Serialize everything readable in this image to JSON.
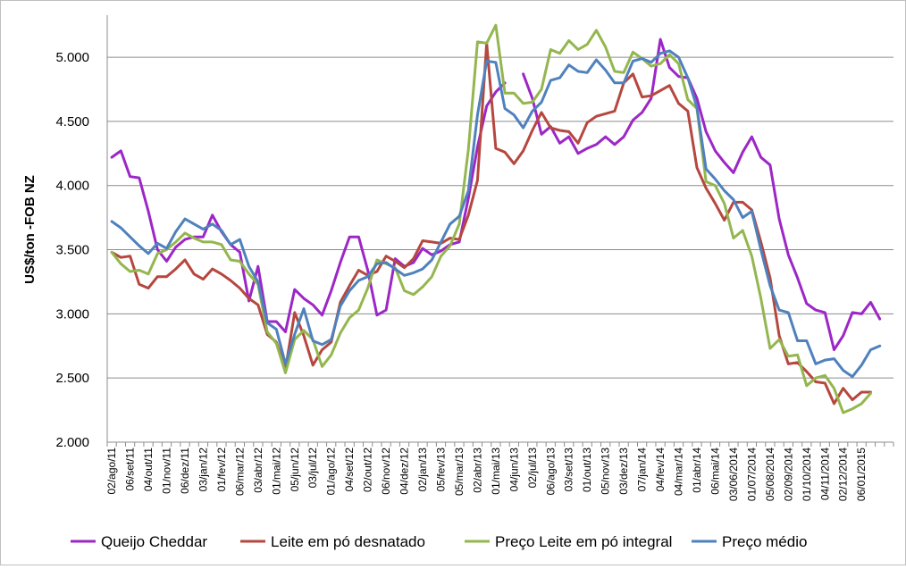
{
  "chart_data": {
    "type": "line",
    "title": "",
    "xlabel": "",
    "ylabel": "US$/ton -FOB NZ",
    "ylim": [
      2000,
      5300
    ],
    "ytick_values": [
      2000,
      2500,
      3000,
      3500,
      4000,
      4500,
      5000
    ],
    "ytick_labels": [
      "2.000",
      "2.500",
      "3.000",
      "3.500",
      "4.000",
      "4.500",
      "5.000"
    ],
    "grid": "horizontal",
    "legend_position": "bottom",
    "n_points": 86,
    "x_tick_labels": [
      {
        "i": 0,
        "label": "02/ago/11"
      },
      {
        "i": 2,
        "label": "06/set/11"
      },
      {
        "i": 4,
        "label": "04/out/11"
      },
      {
        "i": 6,
        "label": "01/nov/11"
      },
      {
        "i": 8,
        "label": "06/dez/11"
      },
      {
        "i": 10,
        "label": "03/jan/12"
      },
      {
        "i": 12,
        "label": "01/fev/12"
      },
      {
        "i": 14,
        "label": "06/mar/12"
      },
      {
        "i": 16,
        "label": "03/abr/12"
      },
      {
        "i": 18,
        "label": "01/mai/12"
      },
      {
        "i": 20,
        "label": "05/jun/12"
      },
      {
        "i": 22,
        "label": "03/jul/12"
      },
      {
        "i": 24,
        "label": "01/ago/12"
      },
      {
        "i": 26,
        "label": "04/set/12"
      },
      {
        "i": 28,
        "label": "02/out/12"
      },
      {
        "i": 30,
        "label": "06/nov/12"
      },
      {
        "i": 32,
        "label": "04/dez/12"
      },
      {
        "i": 34,
        "label": "02/jan/13"
      },
      {
        "i": 36,
        "label": "05/fev/13"
      },
      {
        "i": 38,
        "label": "05/mar/13"
      },
      {
        "i": 40,
        "label": "02/abr/13"
      },
      {
        "i": 42,
        "label": "01/mai/13"
      },
      {
        "i": 44,
        "label": "04/jun/13"
      },
      {
        "i": 46,
        "label": "02/jul/13"
      },
      {
        "i": 48,
        "label": "06/ago/13"
      },
      {
        "i": 50,
        "label": "03/set/13"
      },
      {
        "i": 52,
        "label": "01/out/13"
      },
      {
        "i": 54,
        "label": "05/nov/13"
      },
      {
        "i": 56,
        "label": "03/dez/13"
      },
      {
        "i": 58,
        "label": "07/jan/14"
      },
      {
        "i": 60,
        "label": "04/fev/14"
      },
      {
        "i": 62,
        "label": "04/mar/14"
      },
      {
        "i": 64,
        "label": "01/abr/14"
      },
      {
        "i": 66,
        "label": "06/mai/14"
      },
      {
        "i": 68,
        "label": "03/06/2014"
      },
      {
        "i": 70,
        "label": "01/07/2014"
      },
      {
        "i": 72,
        "label": "05/08/2014"
      },
      {
        "i": 74,
        "label": "02/09/2014"
      },
      {
        "i": 76,
        "label": "01/10/2014"
      },
      {
        "i": 78,
        "label": "04/11/2014"
      },
      {
        "i": 80,
        "label": "02/12/2014"
      },
      {
        "i": 82,
        "label": "06/01/2015"
      }
    ],
    "series": [
      {
        "name": "Queijo Cheddar",
        "color": "#9c27c6",
        "values": [
          4220,
          4270,
          4070,
          4060,
          3800,
          3500,
          3410,
          3520,
          3580,
          3600,
          3600,
          3770,
          3640,
          3540,
          3480,
          3100,
          3370,
          2940,
          2940,
          2860,
          3190,
          3120,
          3070,
          2990,
          3180,
          3400,
          3600,
          3600,
          3340,
          2990,
          3030,
          3430,
          3370,
          3400,
          3510,
          3460,
          3490,
          3540,
          3560,
          3900,
          4300,
          4620,
          4730,
          4800,
          null,
          4870,
          4680,
          4400,
          4460,
          4330,
          4380,
          4250,
          4290,
          4320,
          4380,
          4320,
          4380,
          4510,
          4570,
          4680,
          5140,
          4920,
          4850,
          4840,
          4680,
          4420,
          4270,
          4180,
          4100,
          4260,
          4380,
          4220,
          4160,
          3740,
          3460,
          3280,
          3080,
          3030,
          3010,
          2720,
          2830,
          3010,
          3000,
          3090,
          2960,
          null
        ],
        "label": "Queijo Cheddar"
      },
      {
        "name": "Leite em pó desnatado",
        "color": "#b5473f",
        "values": [
          3480,
          3440,
          3450,
          3230,
          3200,
          3290,
          3290,
          3350,
          3420,
          3310,
          3270,
          3350,
          3310,
          3260,
          3200,
          3120,
          3070,
          2840,
          2780,
          2570,
          3010,
          2830,
          2600,
          2720,
          2780,
          3090,
          3220,
          3340,
          3300,
          3330,
          3450,
          3410,
          3360,
          3430,
          3570,
          3560,
          3550,
          3590,
          3580,
          3770,
          4040,
          5110,
          4290,
          4260,
          4170,
          4270,
          4430,
          4570,
          4450,
          4430,
          4420,
          4330,
          4490,
          4540,
          4560,
          4580,
          4800,
          4870,
          4690,
          4700,
          4740,
          4780,
          4640,
          4580,
          4140,
          3980,
          3860,
          3730,
          3870,
          3870,
          3810,
          3560,
          3280,
          2830,
          2610,
          2620,
          2550,
          2470,
          2460,
          2300,
          2420,
          2330,
          2390,
          2390,
          null,
          null
        ],
        "label": "Leite em pó desnatado"
      },
      {
        "name": "Preço Leite em pó integral",
        "color": "#94b64f",
        "values": [
          3480,
          3390,
          3330,
          3340,
          3310,
          3470,
          3500,
          3560,
          3630,
          3590,
          3560,
          3560,
          3540,
          3420,
          3410,
          3310,
          3230,
          2860,
          2770,
          2540,
          2800,
          2870,
          2800,
          2590,
          2680,
          2850,
          2970,
          3030,
          3200,
          3420,
          3390,
          3360,
          3180,
          3150,
          3210,
          3290,
          3450,
          3530,
          3700,
          4280,
          5120,
          5110,
          5250,
          4720,
          4720,
          4640,
          4650,
          4750,
          5060,
          5030,
          5130,
          5060,
          5100,
          5210,
          5080,
          4890,
          4880,
          5040,
          4990,
          4930,
          4950,
          5020,
          4950,
          4670,
          4600,
          4030,
          4000,
          3860,
          3590,
          3650,
          3450,
          3120,
          2730,
          2800,
          2670,
          2680,
          2440,
          2500,
          2520,
          2420,
          2230,
          2260,
          2300,
          2380,
          null,
          null
        ],
        "label": "Preço Leite em pó integral"
      },
      {
        "name": "Preço médio",
        "color": "#4f81bd",
        "values": [
          3720,
          3670,
          3600,
          3530,
          3470,
          3550,
          3510,
          3640,
          3740,
          3700,
          3660,
          3700,
          3650,
          3540,
          3580,
          3370,
          3250,
          2930,
          2880,
          2610,
          2840,
          3040,
          2790,
          2760,
          2800,
          3060,
          3180,
          3260,
          3290,
          3390,
          3400,
          3350,
          3300,
          3320,
          3350,
          3420,
          3560,
          3700,
          3760,
          3960,
          4550,
          4970,
          4960,
          4600,
          4550,
          4450,
          4580,
          4650,
          4820,
          4840,
          4940,
          4890,
          4880,
          4980,
          4900,
          4800,
          4800,
          4970,
          4990,
          4960,
          5030,
          5050,
          5000,
          4840,
          4610,
          4130,
          4050,
          3960,
          3890,
          3750,
          3800,
          3500,
          3220,
          3030,
          3010,
          2790,
          2790,
          2610,
          2640,
          2650,
          2560,
          2510,
          2600,
          2720,
          2750,
          null
        ]
      }
    ]
  }
}
